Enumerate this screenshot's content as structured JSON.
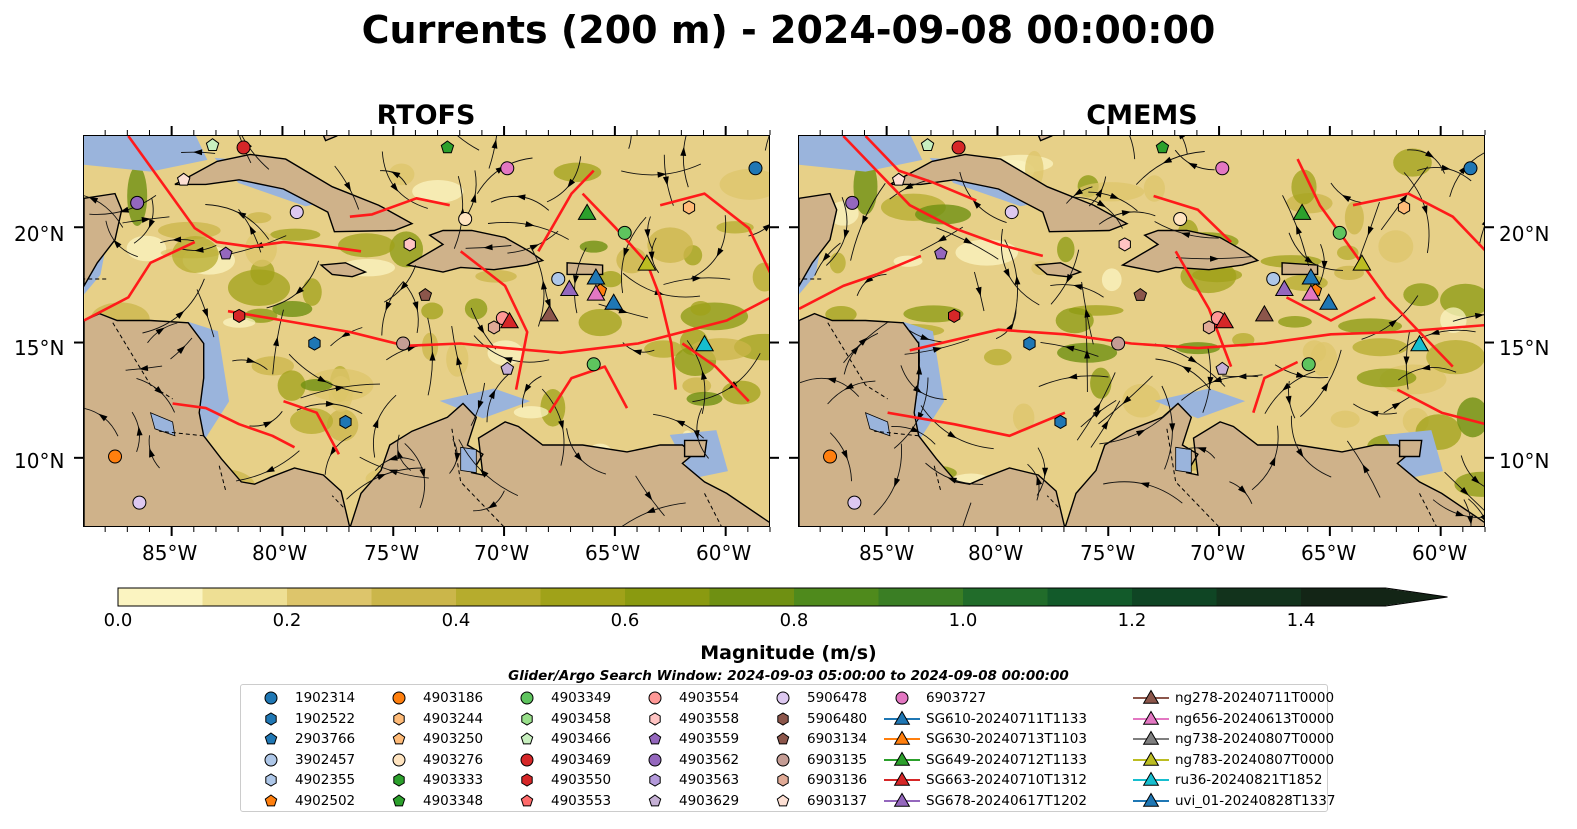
{
  "chart_data": {
    "type": "map",
    "title": "Currents (200 m) - 2024-09-08 00:00:00",
    "panels": [
      {
        "title": "RTOFS"
      },
      {
        "title": "CMEMS"
      }
    ],
    "x_ticks": [
      "85°W",
      "80°W",
      "75°W",
      "70°W",
      "65°W",
      "60°W"
    ],
    "y_ticks_left": [
      "20°N",
      "15°N",
      "10°N"
    ],
    "y_ticks_right": [
      "20°N",
      "15°N",
      "10°N"
    ],
    "lon_range": [
      -89,
      -58
    ],
    "lat_range": [
      7,
      24
    ],
    "colorbar": {
      "label": "Magnitude (m/s)",
      "ticks": [
        "0.0",
        "0.2",
        "0.4",
        "0.6",
        "0.8",
        "1.0",
        "1.2",
        "1.4"
      ],
      "range": [
        0,
        1.5
      ],
      "extend": "max",
      "colors": [
        "#fbf4c1",
        "#eedf94",
        "#ddc56b",
        "#cbb64a",
        "#b6ac2d",
        "#a0a219",
        "#8a9a10",
        "#6f9012",
        "#4f8a1c",
        "#3a7e24",
        "#216c2a",
        "#125a2a",
        "#0f4524",
        "#12331c",
        "#132516"
      ]
    },
    "search_window": "Glider/Argo Search Window: 2024-09-03 05:00:00 to 2024-09-08 00:00:00",
    "legend": [
      {
        "label": "1902314",
        "marker": "circle",
        "color": "#1f77b4"
      },
      {
        "label": "1902522",
        "marker": "hexagon",
        "color": "#1f77b4"
      },
      {
        "label": "2903766",
        "marker": "pentagon",
        "color": "#1f77b4"
      },
      {
        "label": "3902457",
        "marker": "circle",
        "color": "#aec7e8"
      },
      {
        "label": "4902355",
        "marker": "hexagon",
        "color": "#aec7e8"
      },
      {
        "label": "4902502",
        "marker": "pentagon",
        "color": "#ff7f0e"
      },
      {
        "label": "4903186",
        "marker": "circle",
        "color": "#ff7f0e"
      },
      {
        "label": "4903244",
        "marker": "hexagon",
        "color": "#ffbb78"
      },
      {
        "label": "4903250",
        "marker": "pentagon",
        "color": "#ffbb78"
      },
      {
        "label": "4903276",
        "marker": "circle",
        "color": "#ffe4c0"
      },
      {
        "label": "4903333",
        "marker": "hexagon",
        "color": "#2ca02c"
      },
      {
        "label": "4903348",
        "marker": "pentagon",
        "color": "#2ca02c"
      },
      {
        "label": "4903349",
        "marker": "circle",
        "color": "#5ec45e"
      },
      {
        "label": "4903458",
        "marker": "hexagon",
        "color": "#98df8a"
      },
      {
        "label": "4903466",
        "marker": "pentagon",
        "color": "#c8f0bf"
      },
      {
        "label": "4903469",
        "marker": "circle",
        "color": "#d62728"
      },
      {
        "label": "4903550",
        "marker": "hexagon",
        "color": "#d62728"
      },
      {
        "label": "4903553",
        "marker": "pentagon",
        "color": "#ff6b6b"
      },
      {
        "label": "4903554",
        "marker": "circle",
        "color": "#ff9896"
      },
      {
        "label": "4903558",
        "marker": "hexagon",
        "color": "#ffc4c3"
      },
      {
        "label": "4903559",
        "marker": "pentagon",
        "color": "#9467bd"
      },
      {
        "label": "4903562",
        "marker": "circle",
        "color": "#9467bd"
      },
      {
        "label": "4903563",
        "marker": "hexagon",
        "color": "#b49adb"
      },
      {
        "label": "4903629",
        "marker": "pentagon",
        "color": "#c5b0d5"
      },
      {
        "label": "5906478",
        "marker": "circle",
        "color": "#ddc8f0"
      },
      {
        "label": "5906480",
        "marker": "hexagon",
        "color": "#8c564b"
      },
      {
        "label": "6903134",
        "marker": "pentagon",
        "color": "#8c564b"
      },
      {
        "label": "6903135",
        "marker": "circle",
        "color": "#c49c94"
      },
      {
        "label": "6903136",
        "marker": "hexagon",
        "color": "#e0aa96"
      },
      {
        "label": "6903137",
        "marker": "pentagon",
        "color": "#fde0d4"
      },
      {
        "label": "6903727",
        "marker": "circle",
        "color": "#e377c2"
      },
      {
        "label": "SG610-20240711T1133",
        "marker": "triangle-line",
        "color": "#1f77b4"
      },
      {
        "label": "SG630-20240713T1103",
        "marker": "triangle-line",
        "color": "#ff7f0e"
      },
      {
        "label": "SG649-20240712T1133",
        "marker": "triangle-line",
        "color": "#2ca02c"
      },
      {
        "label": "SG663-20240710T1312",
        "marker": "triangle-line",
        "color": "#d62728"
      },
      {
        "label": "SG678-20240617T1202",
        "marker": "triangle-line",
        "color": "#9467bd"
      },
      {
        "label": "ng278-20240711T0000",
        "marker": "triangle-line",
        "color": "#8c564b"
      },
      {
        "label": "ng656-20240613T0000",
        "marker": "triangle-line",
        "color": "#e377c2"
      },
      {
        "label": "ng738-20240807T0000",
        "marker": "triangle-line",
        "color": "#7f7f7f"
      },
      {
        "label": "ng783-20240807T0000",
        "marker": "triangle-line",
        "color": "#bcbd22"
      },
      {
        "label": "ru36-20240821T1852",
        "marker": "triangle-line",
        "color": "#17becf"
      },
      {
        "label": "uvi_01-20240828T1337",
        "marker": "triangle-line",
        "color": "#1f77b4"
      }
    ]
  }
}
